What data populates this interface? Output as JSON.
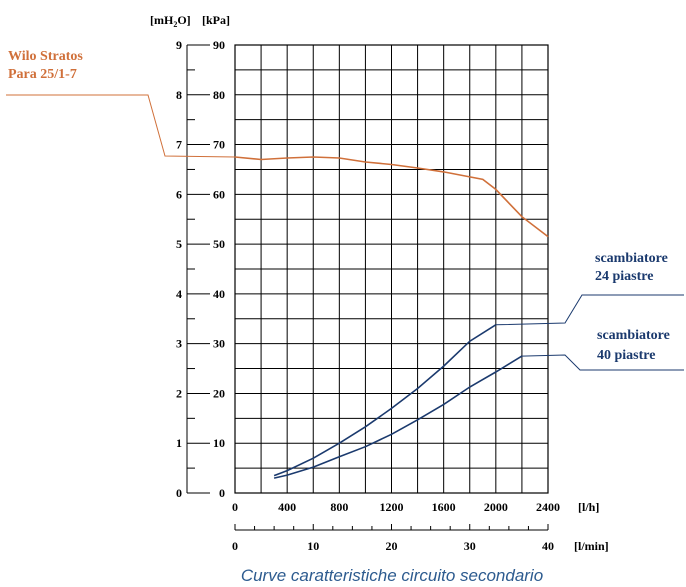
{
  "chart_data": {
    "type": "line",
    "caption": "Curve caratteristiche circuito secondario",
    "units": {
      "mh2o": "[mH",
      "mh2o_sub": "2",
      "mh2o_tail": "O]",
      "kpa": "[kPa]"
    },
    "x_axis": {
      "unit_lh": "[l/h]",
      "unit_lmin": "[l/min]",
      "ticks_lh": [
        0,
        400,
        800,
        1200,
        1600,
        2000,
        2400
      ],
      "ticks_lmin": [
        0,
        10,
        20,
        30,
        40
      ],
      "range_lh": [
        0,
        2400
      ],
      "range_lmin": [
        0,
        40
      ]
    },
    "y_axis": {
      "ticks_mh2o": [
        0,
        1,
        2,
        3,
        4,
        5,
        6,
        7,
        8,
        9
      ],
      "ticks_kpa": [
        0,
        10,
        20,
        30,
        40,
        50,
        60,
        70,
        80,
        90
      ],
      "range_kpa": [
        0,
        90
      ]
    },
    "grid": true,
    "series": [
      {
        "name": "Wilo Stratos Para 25/1-7",
        "label_lines": [
          "Wilo Stratos",
          "Para 25/1-7"
        ],
        "color": "#d0703a",
        "x": [
          0,
          200,
          400,
          600,
          800,
          1000,
          1200,
          1400,
          1600,
          1800,
          1900,
          2000,
          2200,
          2400
        ],
        "y": [
          67.5,
          67,
          67.3,
          67.5,
          67.3,
          66.5,
          66,
          65.3,
          64.5,
          63.5,
          63,
          61,
          55.5,
          51.5
        ]
      },
      {
        "name": "scambiatore 24 piastre",
        "label_lines": [
          "scambiatore",
          "24 piastre"
        ],
        "color": "#1b3a6e",
        "x": [
          300,
          400,
          600,
          800,
          1000,
          1200,
          1400,
          1600,
          1800,
          2000
        ],
        "y": [
          3.5,
          4.5,
          7,
          10,
          13.3,
          17,
          21,
          25.5,
          30.5,
          33.8
        ]
      },
      {
        "name": "scambiatore 40 piastre",
        "label_lines": [
          "scambiatore",
          "40 piastre"
        ],
        "color": "#1b3a6e",
        "x": [
          300,
          400,
          600,
          800,
          1000,
          1200,
          1400,
          1600,
          1800,
          2000,
          2200
        ],
        "y": [
          3,
          3.6,
          5.2,
          7.3,
          9.3,
          11.8,
          14.7,
          17.8,
          21.3,
          24.3,
          27.5
        ]
      }
    ]
  }
}
